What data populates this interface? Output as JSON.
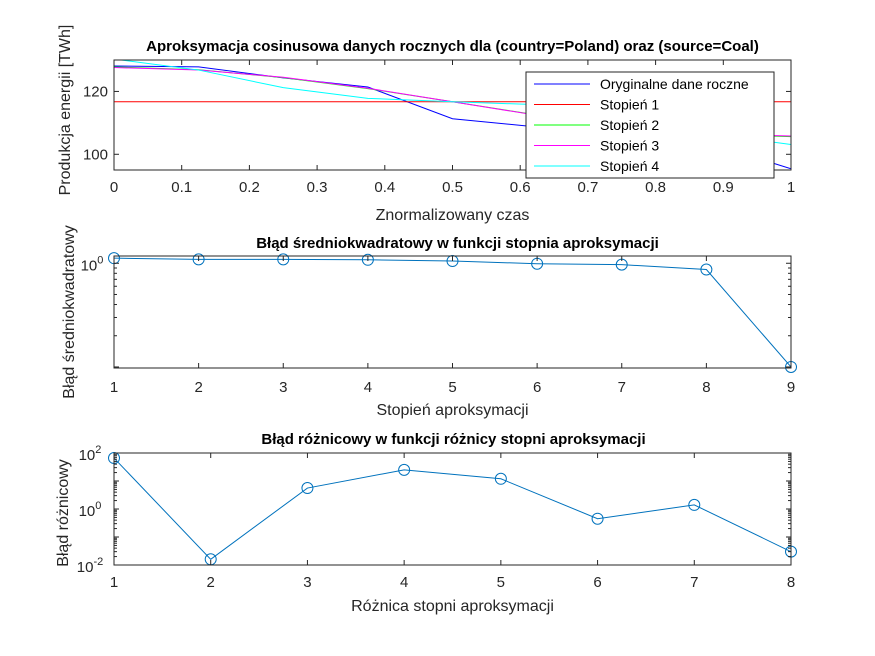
{
  "chart_data": [
    {
      "type": "line",
      "title": "Aproksymacja cosinusowa danych rocznych dla (country=Poland) oraz (source=Coal)",
      "xlabel": "Znormalizowany czas",
      "ylabel": "Produkcja energii [TWh]",
      "xlim": [
        0,
        1
      ],
      "ylim": [
        95,
        130
      ],
      "xticks": [
        "0",
        "0.1",
        "0.2",
        "0.3",
        "0.4",
        "0.5",
        "0.6",
        "0.7",
        "0.8",
        "0.9",
        "1"
      ],
      "xtick_values": [
        0,
        0.1,
        0.2,
        0.3,
        0.4,
        0.5,
        0.6,
        0.7,
        0.8,
        0.9,
        1
      ],
      "yticks": [
        "100",
        "120"
      ],
      "ytick_values": [
        100,
        120
      ],
      "legend_position": "top-right",
      "series": [
        {
          "name": "Oryginalne dane roczne",
          "color": "#0000ff",
          "x": [
            0,
            0.125,
            0.25,
            0.375,
            0.5,
            0.625,
            0.75,
            0.875,
            1
          ],
          "y": [
            128.1,
            127.8,
            124.3,
            121.4,
            111.3,
            108.7,
            105.5,
            103.8,
            95.4
          ]
        },
        {
          "name": "Stopień 1",
          "color": "#ff0000",
          "x": [
            0,
            1
          ],
          "y": [
            116.7,
            116.7
          ]
        },
        {
          "name": "Stopień 2",
          "color": "#00ff00",
          "x": [
            0,
            0.125,
            0.25,
            0.375,
            0.5,
            0.625,
            0.75,
            0.875,
            1
          ],
          "y": [
            127.8,
            126.9,
            124.4,
            120.9,
            116.7,
            112.5,
            109.0,
            106.5,
            105.6
          ]
        },
        {
          "name": "Stopień 3",
          "color": "#ff00ff",
          "x": [
            0,
            0.125,
            0.25,
            0.375,
            0.5,
            0.625,
            0.75,
            0.875,
            1
          ],
          "y": [
            127.6,
            126.8,
            124.5,
            121.0,
            116.7,
            112.4,
            108.9,
            106.6,
            105.8
          ]
        },
        {
          "name": "Stopień 4",
          "color": "#00ffff",
          "x": [
            0,
            0.125,
            0.25,
            0.375,
            0.5,
            0.625,
            0.75,
            0.875,
            1
          ],
          "y": [
            130.3,
            126.8,
            121.2,
            117.8,
            116.7,
            115.8,
            112.3,
            106.7,
            103.1
          ]
        }
      ]
    },
    {
      "type": "line",
      "title": "Błąd średniokwadratowy w funkcji stopnia aproksymacji",
      "xlabel": "Stopień aproksymacji",
      "ylabel": "Błąd średniokwadratowy",
      "xlim": [
        1,
        9
      ],
      "ylim_log10": [
        -1.01,
        0.07
      ],
      "yscale": "log",
      "xticks": [
        "1",
        "2",
        "3",
        "4",
        "5",
        "6",
        "7",
        "8",
        "9"
      ],
      "xtick_values": [
        1,
        2,
        3,
        4,
        5,
        6,
        7,
        8,
        9
      ],
      "ytick_major": {
        "base": "10",
        "exp": "0",
        "value": 1
      },
      "color": "#0072bd",
      "marker": "circle",
      "x": [
        1,
        2,
        3,
        4,
        5,
        6,
        7,
        8,
        9
      ],
      "y": [
        1.12,
        1.09,
        1.09,
        1.08,
        1.05,
        0.99,
        0.97,
        0.87,
        0.1
      ]
    },
    {
      "type": "line",
      "title": "Błąd różnicowy w funkcji różnicy stopni aproksymacji",
      "xlabel": "Różnica stopni aproksymacji",
      "ylabel": "Błąd różnicowy",
      "xlim": [
        1,
        8
      ],
      "ylim_log10": [
        -2,
        2
      ],
      "yscale": "log",
      "xticks": [
        "1",
        "2",
        "3",
        "4",
        "5",
        "6",
        "7",
        "8"
      ],
      "xtick_values": [
        1,
        2,
        3,
        4,
        5,
        6,
        7,
        8
      ],
      "ytick_major": [
        {
          "base": "10",
          "exp": "2",
          "value": 100
        },
        {
          "base": "10",
          "exp": "0",
          "value": 1
        },
        {
          "base": "10",
          "exp": "-2",
          "value": 0.01
        }
      ],
      "color": "#0072bd",
      "marker": "circle",
      "x": [
        1,
        2,
        3,
        4,
        5,
        6,
        7,
        8
      ],
      "y": [
        66,
        0.016,
        5.6,
        25,
        12,
        0.45,
        1.4,
        0.03
      ]
    }
  ]
}
